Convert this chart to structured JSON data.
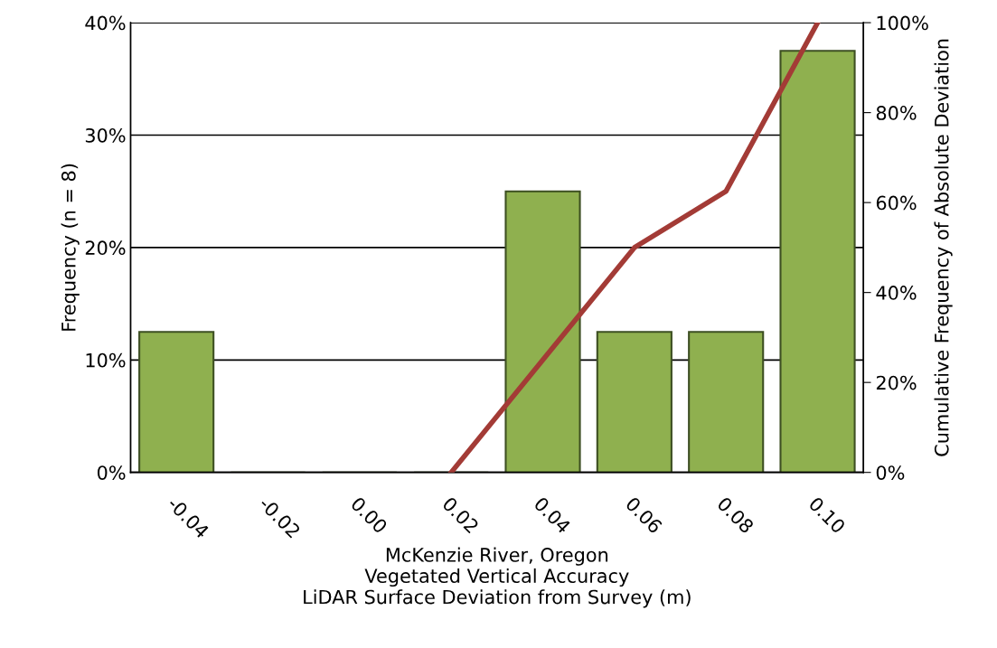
{
  "chart_data": {
    "type": "bar",
    "xlabel": "McKenzie River, Oregon\nVegetated Vertical Accuracy\nLiDAR Surface Deviation from Survey (m)",
    "ylabel": "Frequency (n = 8)",
    "y2label": "Cumulative Frequency of Absolute Deviation",
    "categories": [
      "-0.04",
      "-0.02",
      "0.00",
      "0.02",
      "0.04",
      "0.06",
      "0.08",
      "0.10"
    ],
    "series": [
      {
        "color": "#8fb04f",
        "values": [
          12.5,
          0,
          0,
          0,
          25,
          12.5,
          12.5,
          37.5
        ]
      },
      {
        "type": "line",
        "axis": "y2",
        "color": "#a33b36",
        "values": [
          null,
          null,
          null,
          0,
          25,
          50,
          62.5,
          100
        ]
      }
    ],
    "ylim": [
      0,
      40
    ],
    "yticks": [
      {
        "value": 0,
        "label": "0%"
      },
      {
        "value": 10,
        "label": "10%"
      },
      {
        "value": 20,
        "label": "20%"
      },
      {
        "value": 30,
        "label": "30%"
      },
      {
        "value": 40,
        "label": "40%"
      }
    ],
    "y2lim": [
      0,
      100
    ],
    "y2ticks": [
      {
        "value": 0,
        "label": "0%"
      },
      {
        "value": 20,
        "label": "20%"
      },
      {
        "value": 40,
        "label": "40%"
      },
      {
        "value": 60,
        "label": "60%"
      },
      {
        "value": 80,
        "label": "80%"
      },
      {
        "value": 100,
        "label": "100%"
      }
    ],
    "grid": "y",
    "marker": "none",
    "line_style": "solid"
  }
}
